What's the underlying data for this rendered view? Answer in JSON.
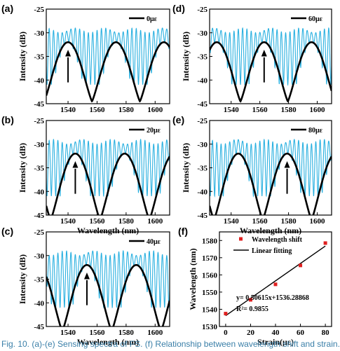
{
  "caption": "Fig. 10. (a)-(e) Sensing spectra of FS. (f) Relationship between wavelength shift and strain.",
  "colors": {
    "spectrum": "#29b0e0",
    "envelope": "#000000",
    "points": "#e02020",
    "fit": "#000000",
    "axis": "#000000"
  },
  "chart_data": [
    {
      "type": "line",
      "panel": "(a)",
      "legend": "0με",
      "ylabel": "Intensity (dB)",
      "xlabel": "",
      "xlim": [
        1525,
        1610
      ],
      "ylim": [
        -45,
        -25
      ],
      "xticks": [
        1540,
        1560,
        1580,
        1600
      ],
      "yticks": [
        -25,
        -30,
        -35,
        -40,
        -45
      ],
      "envelope_minima": [
        1556,
        1589
      ],
      "envelope_peak": 1540,
      "arrow_x": 1540,
      "series": [
        {
          "kind": "fringe",
          "period": 3.0,
          "peak": -29.5,
          "trough": -37.0
        },
        {
          "kind": "envelope",
          "period": 33,
          "peak": -32.0,
          "trough": -44.5
        }
      ]
    },
    {
      "type": "line",
      "panel": "(b)",
      "legend": "20με",
      "ylabel": "Intensity (dB)",
      "xlabel": "Wavelength (nm)",
      "xlim": [
        1525,
        1610
      ],
      "ylim": [
        -45,
        -25
      ],
      "xticks": [
        1540,
        1560,
        1580,
        1600
      ],
      "yticks": [
        -25,
        -30,
        -35,
        -40,
        -45
      ],
      "envelope_minima": [
        1527,
        1561,
        1595
      ],
      "envelope_peak": 1545,
      "arrow_x": 1545,
      "series": [
        {
          "kind": "fringe",
          "period": 3.0,
          "peak": -29.5,
          "trough": -37.0
        },
        {
          "kind": "envelope",
          "period": 34,
          "peak": -32.0,
          "trough": -46.0
        }
      ]
    },
    {
      "type": "line",
      "panel": "(c)",
      "legend": "40με",
      "ylabel": "Intensity (dB)",
      "xlabel": "Wavelength (nm)",
      "xlim": [
        1525,
        1610
      ],
      "ylim": [
        -45,
        -25
      ],
      "xticks": [
        1540,
        1560,
        1580,
        1600
      ],
      "yticks": [
        -25,
        -30,
        -35,
        -40,
        -45
      ],
      "envelope_minima": [
        1537,
        1571,
        1605
      ],
      "envelope_peak": 1553,
      "arrow_x": 1553,
      "series": [
        {
          "kind": "fringe",
          "period": 3.0,
          "peak": -29.5,
          "trough": -37.0
        },
        {
          "kind": "envelope",
          "period": 34,
          "peak": -32.0,
          "trough": -46.0
        }
      ]
    },
    {
      "type": "line",
      "panel": "(d)",
      "legend": "60με",
      "ylabel": "Intensity (dB)",
      "xlabel": "",
      "xlim": [
        1525,
        1610
      ],
      "ylim": [
        -45,
        -25
      ],
      "xticks": [
        1540,
        1560,
        1580,
        1600
      ],
      "yticks": [
        -25,
        -30,
        -35,
        -40,
        -45
      ],
      "envelope_minima": [
        1547,
        1580
      ],
      "envelope_peak": 1563,
      "arrow_x": 1563,
      "series": [
        {
          "kind": "fringe",
          "period": 3.0,
          "peak": -29.5,
          "trough": -37.0
        },
        {
          "kind": "envelope",
          "period": 33,
          "peak": -32.0,
          "trough": -44.5
        }
      ]
    },
    {
      "type": "line",
      "panel": "(e)",
      "legend": "80με",
      "ylabel": "Intensity (dB)",
      "xlabel": "Wavelength (nm)",
      "xlim": [
        1525,
        1610
      ],
      "ylim": [
        -45,
        -25
      ],
      "xticks": [
        1540,
        1560,
        1580,
        1600
      ],
      "yticks": [
        -25,
        -30,
        -35,
        -40,
        -45
      ],
      "envelope_minima": [
        1562,
        1596
      ],
      "envelope_peak": 1579,
      "arrow_x": 1579,
      "series": [
        {
          "kind": "fringe",
          "period": 3.0,
          "peak": -29.5,
          "trough": -37.0
        },
        {
          "kind": "envelope",
          "period": 34,
          "peak": -32.0,
          "trough": -46.0
        }
      ]
    },
    {
      "type": "scatter",
      "panel": "(f)",
      "xlabel": "Strain(με)",
      "ylabel": "Wavelength (nm)",
      "xlim": [
        -5,
        85
      ],
      "ylim": [
        1530,
        1585
      ],
      "xticks": [
        0,
        20,
        40,
        60,
        80
      ],
      "yticks": [
        1530,
        1540,
        1550,
        1560,
        1570,
        1580
      ],
      "series": [
        {
          "name": "Wavelength shift",
          "x": [
            0,
            20,
            40,
            60,
            80
          ],
          "y": [
            1537.5,
            1545.5,
            1554.5,
            1565.5,
            1578.5
          ]
        }
      ],
      "fit": {
        "name": "Linear fitting",
        "slope": 0.50615,
        "intercept": 1536.28868,
        "x_range": [
          0,
          80
        ]
      },
      "annotations": [
        "y= 0.50615x+1536.28868",
        "R²= 0.9855"
      ]
    }
  ]
}
